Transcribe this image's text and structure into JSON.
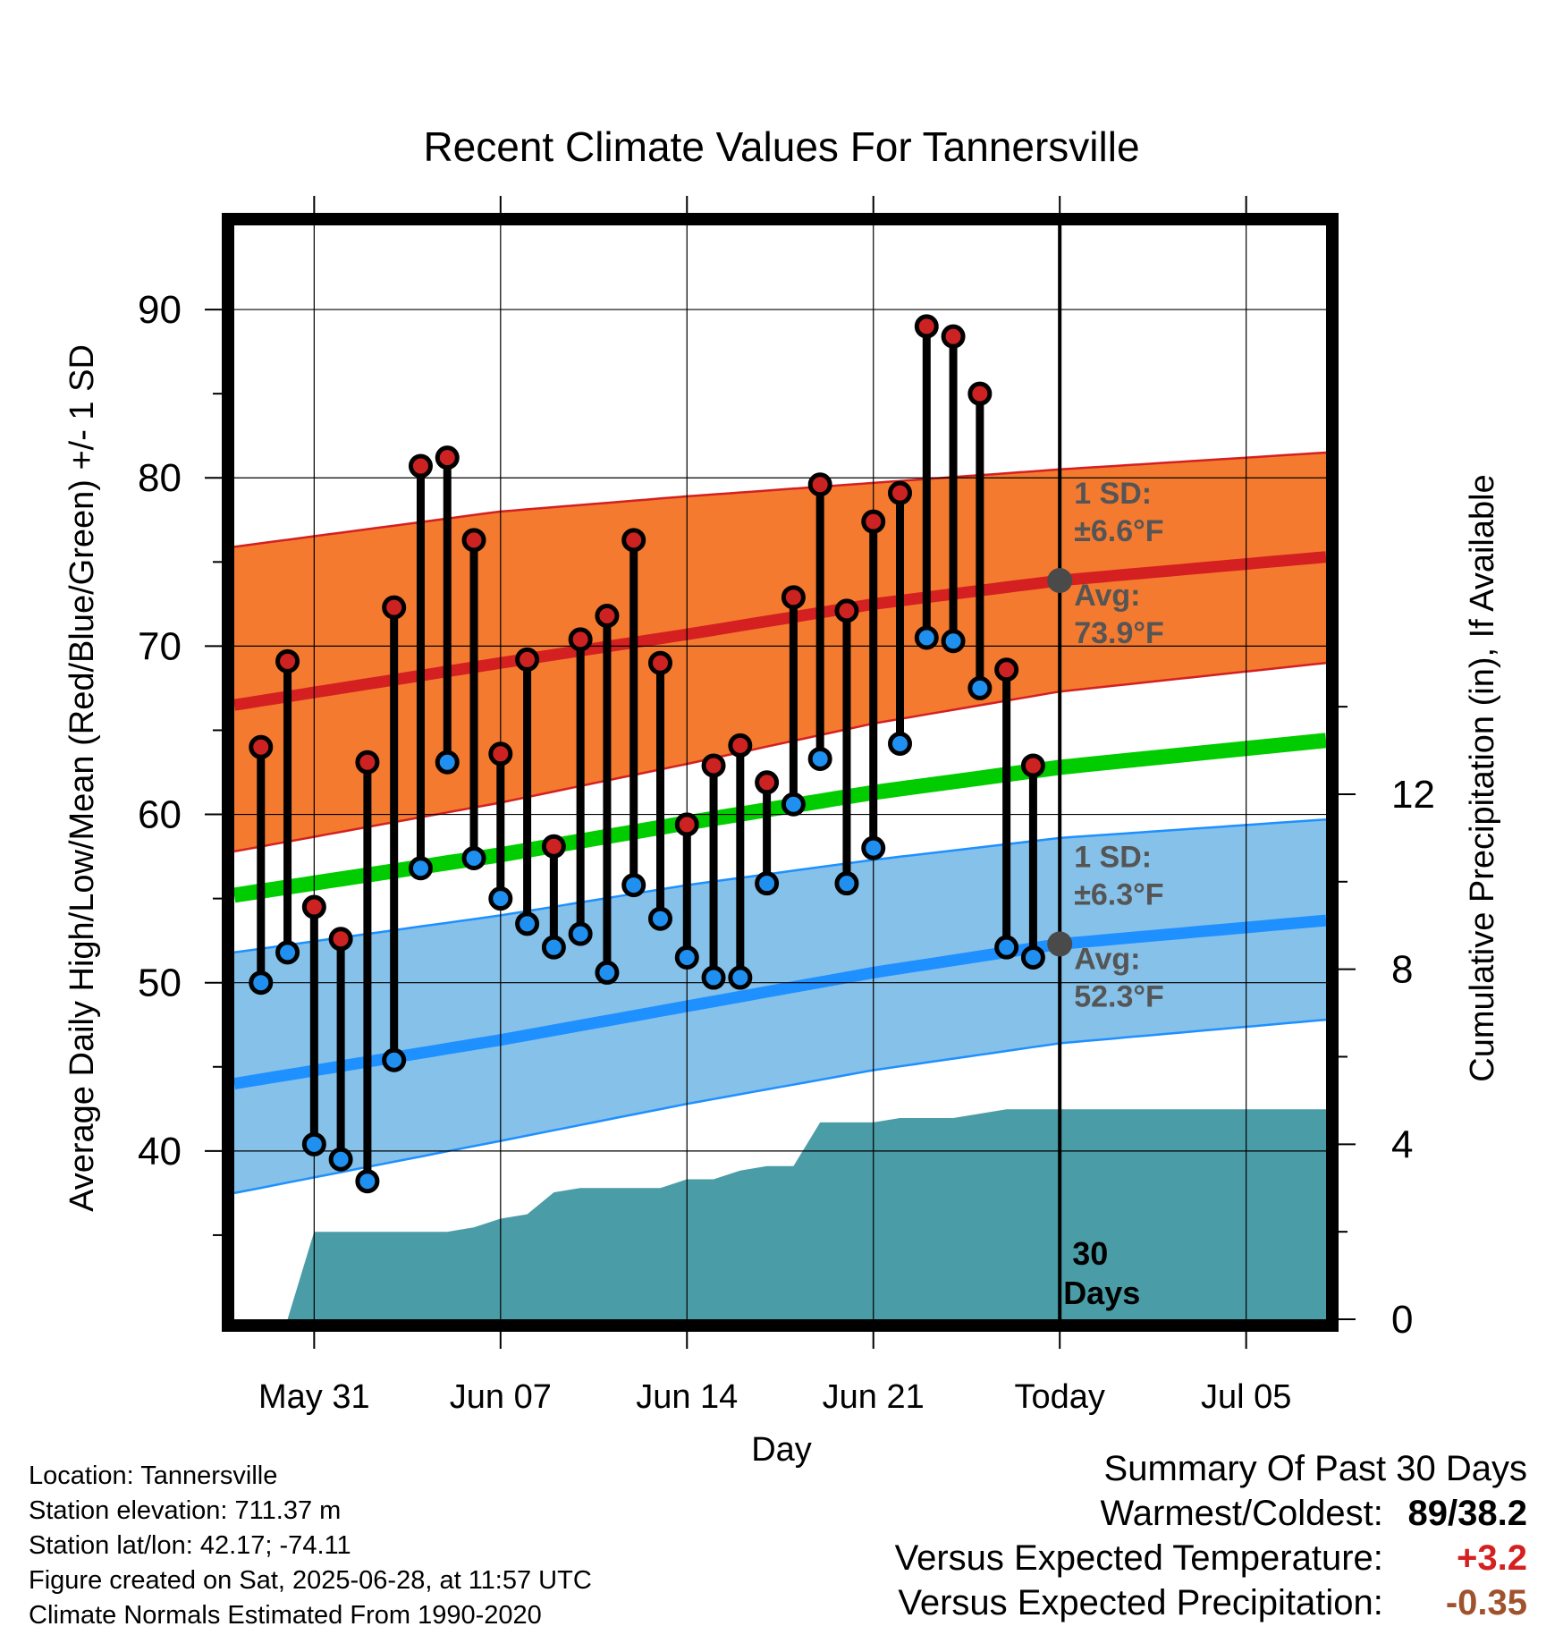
{
  "chart_data": {
    "type": "line",
    "title": "Recent Climate Values For Tannersville",
    "xlabel": "Day",
    "ylabel": "Average Daily High/Low/Mean (Red/Blue/Green) +/- 1 SD",
    "y2label": "Cumulative Precipitation (in), If Available",
    "x_ticks": [
      "May 31",
      "Jun 07",
      "Jun 14",
      "Jun 21",
      "Today",
      "Jul 05"
    ],
    "y_ticks": [
      40,
      50,
      60,
      70,
      80,
      90
    ],
    "y2_ticks": [
      0,
      4,
      8,
      12
    ],
    "ylim": [
      30,
      95
    ],
    "y2lim": [
      0,
      25
    ],
    "x_range_days_relative_to_today": [
      -31,
      10
    ],
    "grid": true,
    "today_marker": {
      "label": "30 Days"
    },
    "daily_observed": {
      "days_relative_to_today": [
        -30,
        -29,
        -28,
        -27,
        -26,
        -25,
        -24,
        -23,
        -22,
        -21,
        -20,
        -19,
        -18,
        -17,
        -16,
        -15,
        -14,
        -13,
        -12,
        -11,
        -10,
        -9,
        -8,
        -7,
        -6,
        -5,
        -4,
        -3,
        -2,
        -1
      ],
      "high": [
        64.0,
        69.1,
        54.5,
        52.6,
        63.1,
        72.3,
        80.7,
        81.2,
        76.3,
        63.6,
        69.2,
        58.1,
        70.4,
        71.8,
        76.3,
        69.0,
        59.4,
        62.9,
        64.1,
        61.9,
        72.9,
        79.6,
        72.1,
        77.4,
        79.1,
        89.0,
        88.4,
        85.0,
        68.6,
        62.9
      ],
      "low": [
        50.0,
        51.8,
        40.4,
        39.5,
        38.2,
        45.4,
        56.8,
        63.1,
        57.4,
        55.0,
        53.5,
        52.1,
        52.9,
        50.6,
        55.8,
        53.8,
        51.5,
        50.3,
        50.3,
        55.9,
        60.6,
        63.3,
        55.9,
        58.0,
        64.2,
        70.5,
        70.3,
        67.5,
        52.1,
        51.5
      ]
    },
    "normals": {
      "days_relative_to_today": [
        -31,
        -21,
        -14,
        -7,
        0,
        10
      ],
      "high_avg": [
        66.5,
        69.0,
        70.7,
        72.5,
        73.9,
        75.3
      ],
      "high_plus_sd": [
        75.9,
        78.0,
        78.9,
        79.7,
        80.5,
        81.5
      ],
      "high_minus_sd": [
        57.8,
        60.7,
        63.0,
        65.4,
        67.3,
        69.0
      ],
      "mean_avg": [
        55.2,
        57.6,
        59.5,
        61.3,
        62.8,
        64.4
      ],
      "low_avg": [
        44.0,
        46.6,
        48.6,
        50.6,
        52.3,
        53.7
      ],
      "low_plus_sd": [
        51.8,
        54.0,
        55.8,
        57.3,
        58.6,
        59.7
      ],
      "low_minus_sd": [
        37.5,
        40.6,
        42.8,
        44.8,
        46.4,
        47.8
      ]
    },
    "precipitation_cumulative": {
      "days_relative_to_today": [
        -31,
        -29,
        -28,
        -23,
        -22,
        -21,
        -20,
        -19,
        -18,
        -17,
        -15,
        -14,
        -13,
        -12,
        -11,
        -10,
        -9,
        -8,
        -7,
        -6,
        -5,
        -4,
        -3,
        -2,
        0,
        10
      ],
      "values": [
        0,
        0,
        2.0,
        2.0,
        2.1,
        2.3,
        2.4,
        2.9,
        3.0,
        3.0,
        3.0,
        3.2,
        3.2,
        3.4,
        3.5,
        3.5,
        4.5,
        4.5,
        4.5,
        4.6,
        4.6,
        4.6,
        4.7,
        4.8,
        4.8,
        4.8
      ]
    },
    "annotations": {
      "high_sd_label": "1 SD:",
      "high_sd_value": "±6.6°F",
      "high_avg_label": "Avg:",
      "high_avg_value": "73.9°F",
      "low_sd_label": "1 SD:",
      "low_sd_value": "±6.3°F",
      "low_avg_label": "Avg:",
      "low_avg_value": "52.3°F"
    },
    "colors": {
      "high_band": "#f47a30",
      "high_line": "#d42020",
      "mean_line": "#00cc00",
      "low_band": "#85c1e9",
      "low_line": "#1e90ff",
      "precip": "#4a9ca6",
      "high_dot": "#cc2222",
      "low_dot": "#2090f0",
      "annotation_text": "#555555",
      "today_dot": "#4a4a4a"
    }
  },
  "info": {
    "location": "Location: Tannersville",
    "elevation": "Station elevation: 711.37 m",
    "latlon": "Station lat/lon: 42.17; -74.11",
    "created": "Figure created on Sat, 2025-06-28, at 11:57 UTC",
    "normals": "Climate Normals Estimated From 1990-2020"
  },
  "summary": {
    "heading": "Summary Of Past 30 Days",
    "warmest_coldest_label": "Warmest/Coldest:",
    "warmest_coldest_value": "89/38.2",
    "temp_label": "Versus Expected Temperature:",
    "temp_value": "+3.2",
    "temp_color": "#d42020",
    "precip_label": "Versus Expected Precipitation:",
    "precip_value": "-0.35",
    "precip_color": "#a0522d"
  }
}
